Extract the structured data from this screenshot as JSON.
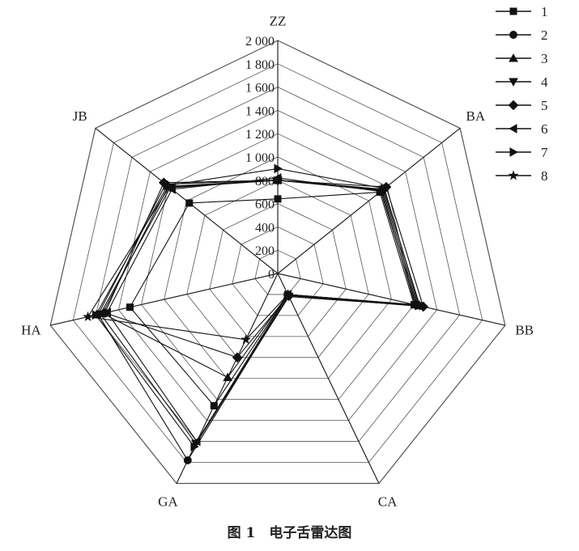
{
  "chart_data": {
    "type": "radar",
    "axes": [
      "ZZ",
      "BA",
      "BB",
      "CA",
      "GA",
      "HA",
      "JB"
    ],
    "rlim": [
      0,
      2000
    ],
    "rticks": [
      0,
      200,
      400,
      600,
      800,
      1000,
      1200,
      1400,
      1600,
      1800,
      2000
    ],
    "rtick_labels": [
      "0",
      "200",
      "400",
      "600",
      "800",
      "1 000",
      "1 200",
      "1 400",
      "1 600",
      "1 800",
      "2 000"
    ],
    "grid": true,
    "legend_position": "top-right",
    "series": [
      {
        "name": "1",
        "marker": "square",
        "values": [
          640,
          1120,
          1200,
          200,
          1260,
          1300,
          970
        ]
      },
      {
        "name": "2",
        "marker": "circle",
        "values": [
          800,
          1150,
          1230,
          210,
          1780,
          1580,
          1230
        ]
      },
      {
        "name": "3",
        "marker": "triangle-up",
        "values": [
          800,
          1140,
          1210,
          200,
          990,
          1540,
          1200
        ]
      },
      {
        "name": "4",
        "marker": "triangle-down",
        "values": [
          800,
          1160,
          1250,
          220,
          1620,
          1560,
          1180
        ]
      },
      {
        "name": "5",
        "marker": "diamond",
        "values": [
          800,
          1190,
          1280,
          210,
          800,
          1520,
          1250
        ]
      },
      {
        "name": "6",
        "marker": "triangle-left",
        "values": [
          820,
          1130,
          1220,
          200,
          1600,
          1500,
          1160
        ]
      },
      {
        "name": "7",
        "marker": "triangle-right",
        "values": [
          900,
          1170,
          1240,
          210,
          1650,
          1600,
          1210
        ]
      },
      {
        "name": "8",
        "marker": "star",
        "values": [
          800,
          1150,
          1230,
          200,
          630,
          1670,
          1190
        ]
      }
    ],
    "colors": {
      "line": "#111111",
      "grid": "#555555"
    }
  },
  "caption": "图 1　电子舌雷达图"
}
